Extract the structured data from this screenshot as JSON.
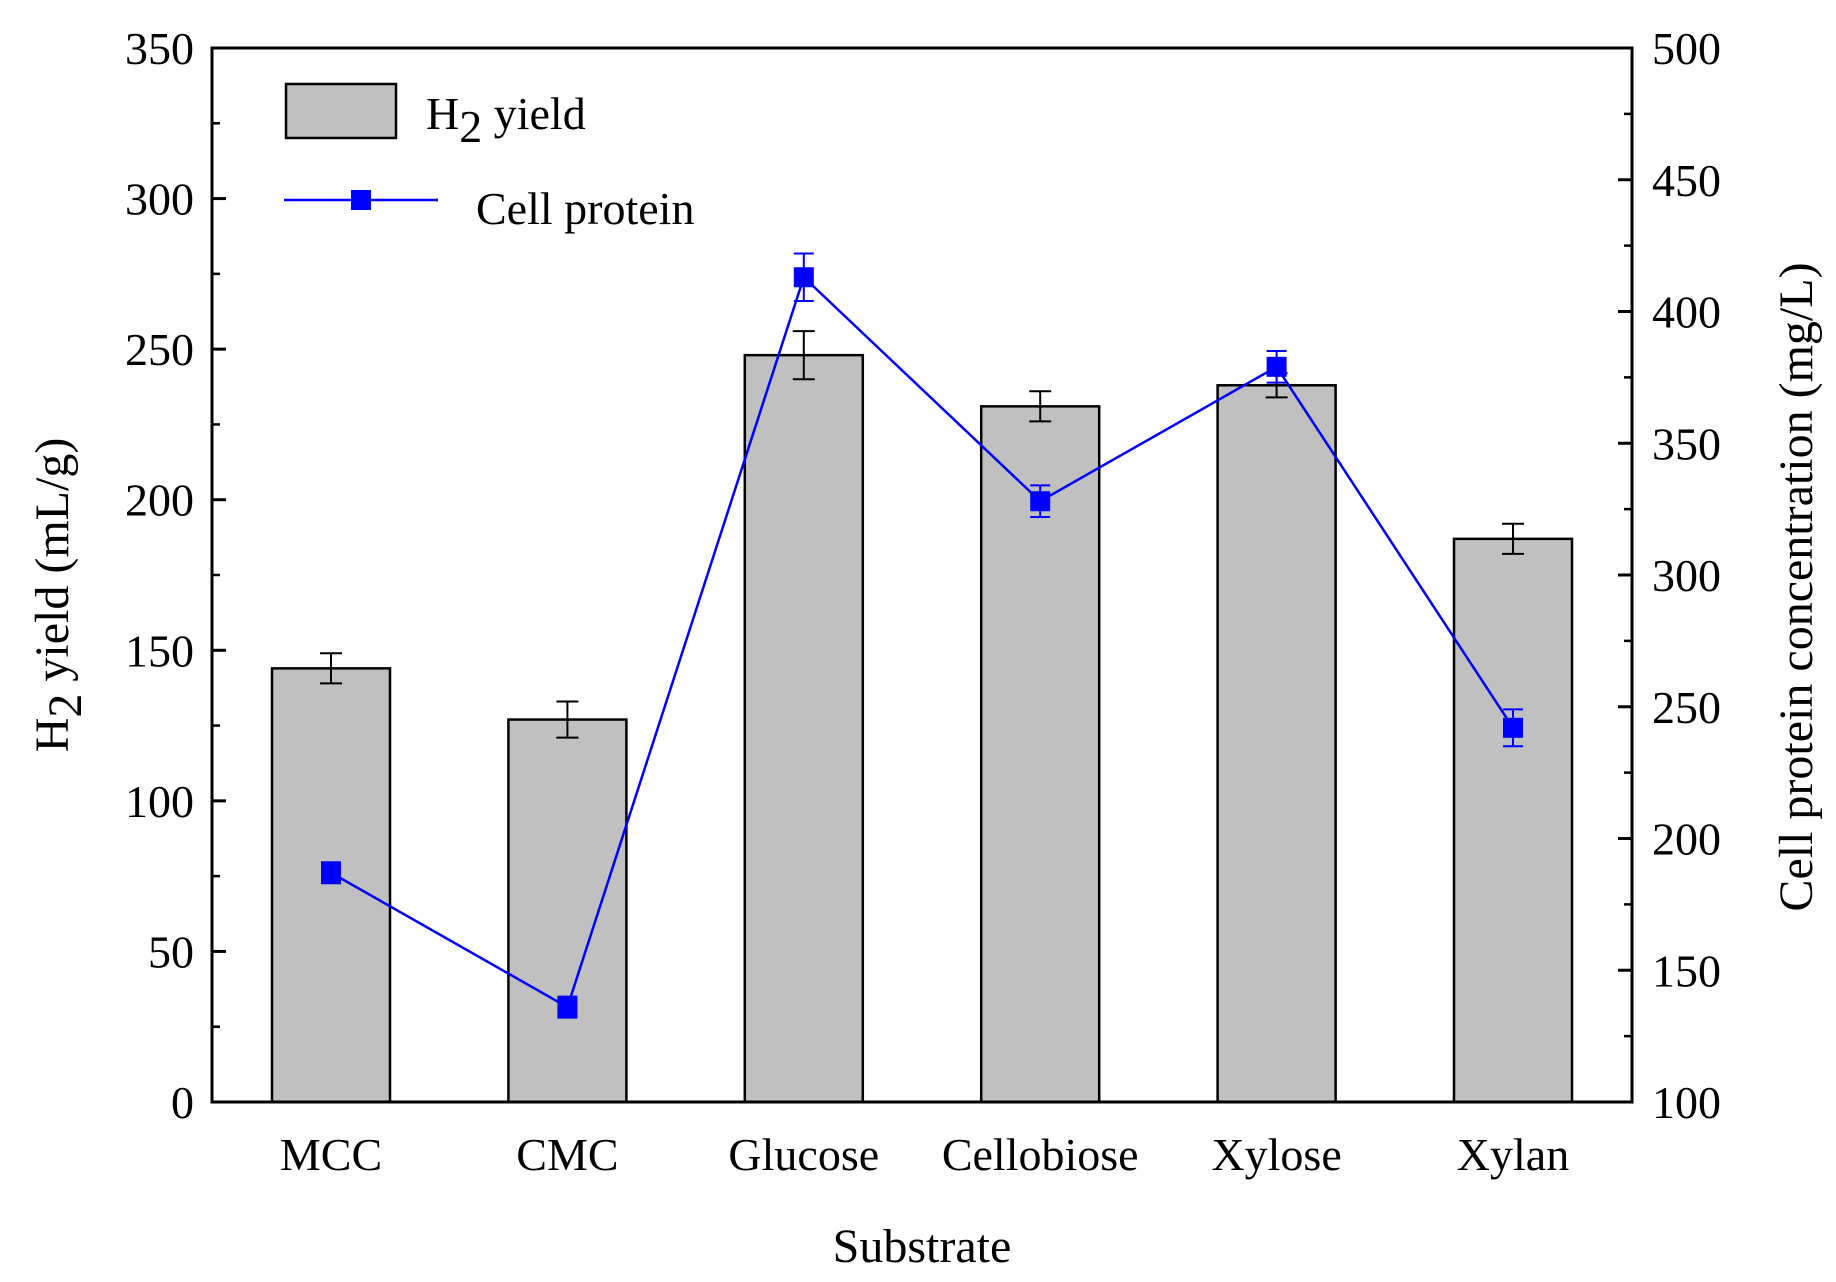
{
  "chart_data": {
    "type": "bar",
    "title": "",
    "xlabel": "Substrate",
    "ylabel": {
      "main": "H",
      "sub": "2",
      "rest": " yield (mL/g)"
    },
    "y2label": "Cell protein concentration (mg/L)",
    "categories": [
      "MCC",
      "CMC",
      "Glucose",
      "Cellobiose",
      "Xylose",
      "Xylan"
    ],
    "ylim": [
      0,
      350
    ],
    "y_ticks": [
      0,
      50,
      100,
      150,
      200,
      250,
      300,
      350
    ],
    "y2lim": [
      100,
      500
    ],
    "y2_ticks": [
      100,
      150,
      200,
      250,
      300,
      350,
      400,
      450,
      500
    ],
    "grid": false,
    "legend_position": "top-left",
    "series": [
      {
        "name": "H2 yield",
        "legend_label": {
          "main": "H",
          "sub": "2",
          "rest": " yield"
        },
        "type": "bar",
        "axis": "left",
        "color": "#c0c0c0",
        "values": [
          144,
          127,
          248,
          231,
          238,
          187
        ],
        "errors": [
          5,
          6,
          8,
          5,
          4,
          5
        ]
      },
      {
        "name": "Cell protein",
        "legend_label": "Cell protein",
        "type": "line",
        "axis": "right",
        "color": "#0000ff",
        "values": [
          187,
          136,
          413,
          328,
          379,
          242
        ],
        "errors": [
          4,
          4,
          9,
          6,
          6,
          7
        ]
      }
    ]
  }
}
